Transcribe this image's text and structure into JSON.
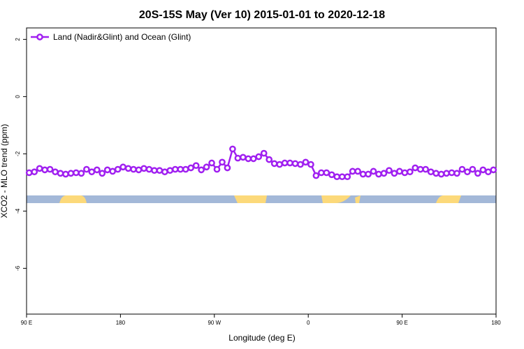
{
  "chart_data": {
    "type": "line",
    "title": "20S-15S May (Ver 10)   2015-01-01 to 2020-12-18",
    "xlabel": "Longitude (deg E)",
    "ylabel": "XCO2 - MLO trend (ppm)",
    "xlim": [
      90,
      540
    ],
    "ylim": [
      -7.6,
      2.4
    ],
    "xticks": [
      {
        "value": 90,
        "label": "90 E"
      },
      180,
      {
        "value": 270,
        "label": "90 W"
      },
      {
        "value": 360,
        "label": "0"
      },
      {
        "value": 450,
        "label": "90 E"
      },
      {
        "value": 540,
        "label": "180"
      }
    ],
    "yticks": [
      -6,
      -4,
      -2,
      0,
      2
    ],
    "legend": "upper left",
    "x": [
      92.5,
      97.5,
      102.5,
      107.5,
      112.5,
      117.5,
      122.5,
      127.5,
      132.5,
      137.5,
      142.5,
      147.5,
      152.5,
      157.5,
      162.5,
      167.5,
      172.5,
      177.5,
      182.5,
      187.5,
      192.5,
      197.5,
      202.5,
      207.5,
      212.5,
      217.5,
      222.5,
      227.5,
      232.5,
      237.5,
      242.5,
      247.5,
      252.5,
      257.5,
      262.5,
      267.5,
      272.5,
      277.5,
      282.5,
      287.5,
      292.5,
      297.5,
      302.5,
      307.5,
      312.5,
      317.5,
      322.5,
      327.5,
      332.5,
      337.5,
      342.5,
      347.5,
      352.5,
      357.5,
      362.5,
      367.5,
      372.5,
      377.5,
      382.5,
      387.5,
      392.5,
      397.5,
      402.5,
      407.5,
      412.5,
      417.5,
      422.5,
      427.5,
      432.5,
      437.5,
      442.5,
      447.5,
      452.5,
      457.5,
      462.5,
      467.5,
      472.5,
      477.5,
      482.5,
      487.5,
      492.5,
      497.5,
      502.5,
      507.5,
      512.5,
      517.5,
      522.5,
      527.5,
      532.5,
      537.5
    ],
    "series": [
      {
        "name": "Land (Nadir&Glint) and Ocean (Glint)",
        "color": "#a020f0",
        "values": [
          -2.66,
          -2.63,
          -2.51,
          -2.56,
          -2.54,
          -2.63,
          -2.68,
          -2.71,
          -2.68,
          -2.66,
          -2.68,
          -2.54,
          -2.63,
          -2.56,
          -2.68,
          -2.56,
          -2.61,
          -2.54,
          -2.46,
          -2.51,
          -2.54,
          -2.56,
          -2.51,
          -2.54,
          -2.58,
          -2.58,
          -2.63,
          -2.58,
          -2.54,
          -2.54,
          -2.54,
          -2.49,
          -2.41,
          -2.56,
          -2.46,
          -2.32,
          -2.54,
          -2.29,
          -2.49,
          -1.83,
          -2.15,
          -2.12,
          -2.17,
          -2.17,
          -2.1,
          -1.98,
          -2.2,
          -2.34,
          -2.37,
          -2.32,
          -2.32,
          -2.34,
          -2.37,
          -2.29,
          -2.37,
          -2.76,
          -2.66,
          -2.66,
          -2.73,
          -2.8,
          -2.8,
          -2.8,
          -2.61,
          -2.61,
          -2.71,
          -2.71,
          -2.61,
          -2.71,
          -2.68,
          -2.58,
          -2.68,
          -2.61,
          -2.66,
          -2.63,
          -2.49,
          -2.54,
          -2.54,
          -2.63,
          -2.68,
          -2.71,
          -2.68,
          -2.66,
          -2.68,
          -2.54,
          -2.63,
          -2.54,
          -2.68,
          -2.56,
          -2.63,
          -2.56
        ]
      }
    ]
  }
}
